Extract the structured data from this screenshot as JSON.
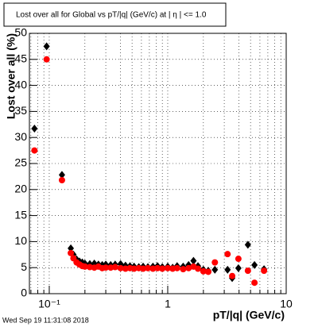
{
  "chart_data": {
    "type": "scatter",
    "title": "Lost over all for  Global vs pT/|q| (GeV/c) at |  η | <= 1.0",
    "x_label": "pT/|q| (GeV/c)",
    "y_label": "Lost over all (%)",
    "footer": "Wed Sep 19 11:31:08 2018",
    "x_log": true,
    "grid": true,
    "xlim": [
      0.068,
      10
    ],
    "ylim": [
      0,
      50
    ],
    "xticks": [
      {
        "value": 0.1,
        "label": "10⁻¹"
      },
      1,
      10
    ],
    "xminorticks": [
      0.07,
      0.08,
      0.09,
      0.2,
      0.3,
      0.4,
      0.5,
      0.6,
      0.7,
      0.8,
      0.9,
      2,
      3,
      4,
      5,
      6,
      7,
      8,
      9
    ],
    "yticks": [
      0,
      5,
      10,
      15,
      20,
      25,
      30,
      35,
      40,
      45,
      50
    ],
    "x": [
      0.075,
      0.095,
      0.128,
      0.152,
      0.16,
      0.17,
      0.18,
      0.19,
      0.2,
      0.22,
      0.24,
      0.26,
      0.28,
      0.3,
      0.33,
      0.36,
      0.4,
      0.44,
      0.48,
      0.52,
      0.57,
      0.62,
      0.68,
      0.75,
      0.82,
      0.9,
      1.0,
      1.1,
      1.2,
      1.35,
      1.5,
      1.65,
      1.8,
      2.0,
      2.2,
      2.5,
      3.2,
      3.5,
      3.95,
      4.75,
      5.4,
      6.5
    ],
    "series": [
      {
        "color": "#000000",
        "marker": "diamond",
        "values": [
          31.7,
          47.5,
          22.8,
          8.7,
          7.5,
          6.6,
          6.2,
          6.0,
          5.8,
          5.7,
          5.8,
          5.6,
          5.5,
          5.6,
          5.5,
          5.6,
          5.7,
          5.4,
          5.3,
          5.2,
          5.1,
          5.2,
          5.1,
          5.2,
          5.3,
          5.1,
          5.2,
          5.0,
          5.3,
          5.2,
          5.5,
          6.3,
          5.3,
          4.6,
          4.4,
          4.6,
          4.6,
          3.0,
          4.9,
          9.4,
          5.5,
          4.7
        ]
      },
      {
        "color": "#ff0000",
        "marker": "circle",
        "values": [
          27.5,
          45,
          21.8,
          7.8,
          6.8,
          6.0,
          5.6,
          5.3,
          5.2,
          5.1,
          5.0,
          5.2,
          4.9,
          5.0,
          5.0,
          5.1,
          4.9,
          4.8,
          4.9,
          4.8,
          4.9,
          4.8,
          4.9,
          4.8,
          4.9,
          4.8,
          4.9,
          4.8,
          4.9,
          4.7,
          4.9,
          5.2,
          4.8,
          4.3,
          4.2,
          6.0,
          7.6,
          3.4,
          6.7,
          4.4,
          2.1,
          4.4
        ]
      }
    ]
  }
}
